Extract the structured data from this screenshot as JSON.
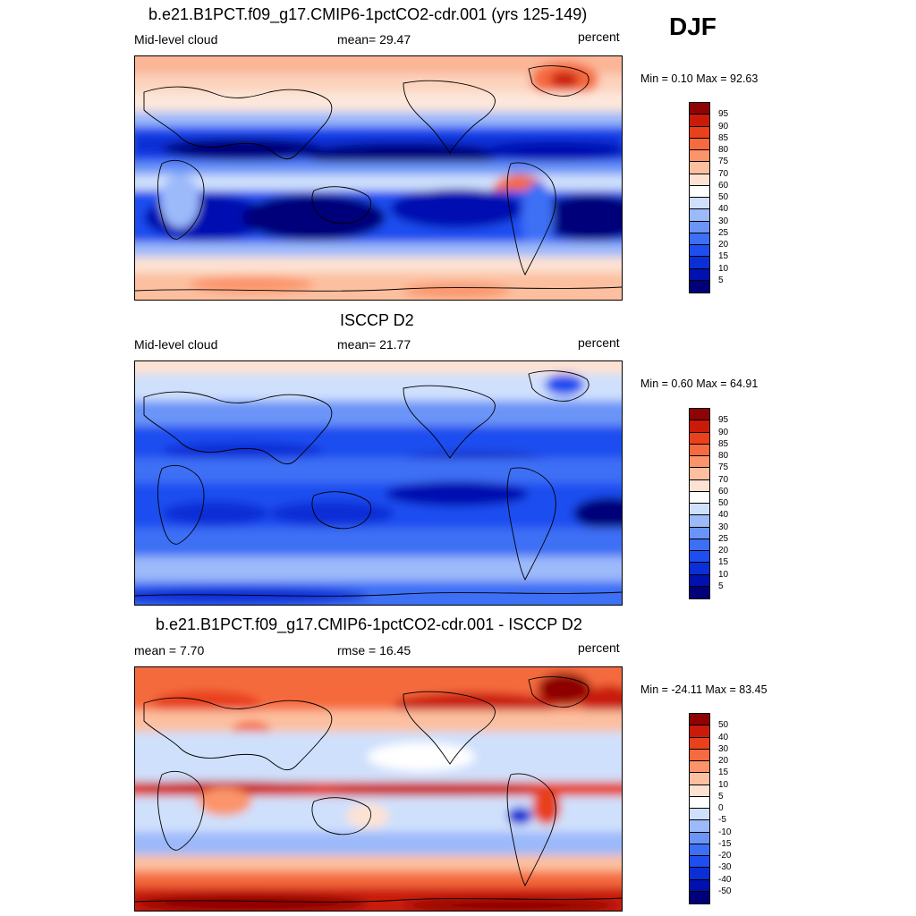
{
  "season": "DJF",
  "panels": [
    {
      "title": "b.e21.B1PCT.f09_g17.CMIP6-1pctCO2-cdr.001 (yrs 125-149)",
      "left_label": "Mid-level cloud",
      "center_label": "mean=  29.47",
      "right_label": "percent",
      "minmax": "Min =   0.10 Max =  92.63"
    },
    {
      "title": "ISCCP D2",
      "left_label": "Mid-level cloud",
      "center_label": "mean=  21.77",
      "right_label": "percent",
      "minmax": "Min =   0.60 Max =  64.91"
    },
    {
      "title": "b.e21.B1PCT.f09_g17.CMIP6-1pctCO2-cdr.001 - ISCCP D2",
      "left_label": "mean =   7.70",
      "center_label": "rmse =  16.45",
      "right_label": "percent",
      "minmax": "Min = -24.11 Max =  83.45"
    }
  ],
  "chart_data": [
    {
      "type": "heatmap",
      "title": "b.e21.B1PCT.f09_g17.CMIP6-1pctCO2-cdr.001 (yrs 125-149)",
      "variable": "Mid-level cloud",
      "units": "percent",
      "mean": 29.47,
      "min": 0.1,
      "max": 92.63,
      "levels": [
        "5",
        "10",
        "15",
        "20",
        "25",
        "30",
        "40",
        "50",
        "60",
        "70",
        "75",
        "80",
        "85",
        "90",
        "95"
      ],
      "colors": [
        "#00007a",
        "#0011b0",
        "#0b2fd6",
        "#1e4ef0",
        "#3d6ff5",
        "#6b94f7",
        "#9cb9fa",
        "#cfe0fc",
        "#ffffff",
        "#fde2d3",
        "#fcbf9f",
        "#fb946b",
        "#f56a3e",
        "#e8411c",
        "#c91a0a",
        "#8e0303"
      ]
    },
    {
      "type": "heatmap",
      "title": "ISCCP D2",
      "variable": "Mid-level cloud",
      "units": "percent",
      "mean": 21.77,
      "min": 0.6,
      "max": 64.91,
      "levels": [
        "5",
        "10",
        "15",
        "20",
        "25",
        "30",
        "40",
        "50",
        "60",
        "70",
        "75",
        "80",
        "85",
        "90",
        "95"
      ],
      "colors": [
        "#00007a",
        "#0011b0",
        "#0b2fd6",
        "#1e4ef0",
        "#3d6ff5",
        "#6b94f7",
        "#9cb9fa",
        "#cfe0fc",
        "#ffffff",
        "#fde2d3",
        "#fcbf9f",
        "#fb946b",
        "#f56a3e",
        "#e8411c",
        "#c91a0a",
        "#8e0303"
      ]
    },
    {
      "type": "heatmap",
      "title": "b.e21.B1PCT.f09_g17.CMIP6-1pctCO2-cdr.001 - ISCCP D2",
      "units": "percent",
      "mean": 7.7,
      "rmse": 16.45,
      "min": -24.11,
      "max": 83.45,
      "levels": [
        "-50",
        "-40",
        "-30",
        "-20",
        "-15",
        "-10",
        "-5",
        "0",
        "5",
        "10",
        "15",
        "20",
        "30",
        "40",
        "50"
      ],
      "colors": [
        "#00007a",
        "#0011b0",
        "#0b2fd6",
        "#1e4ef0",
        "#3d6ff5",
        "#6b94f7",
        "#9cb9fa",
        "#cfe0fc",
        "#ffffff",
        "#fde2d3",
        "#fcbf9f",
        "#fb946b",
        "#f56a3e",
        "#e8411c",
        "#c91a0a",
        "#8e0303"
      ]
    }
  ]
}
